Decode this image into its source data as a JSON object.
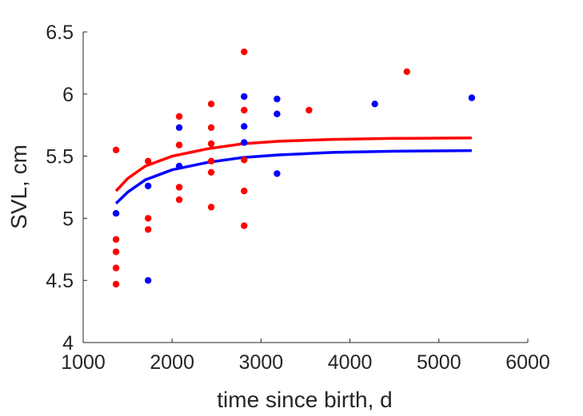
{
  "chart_data": {
    "type": "scatter",
    "xlabel": "time since birth, d",
    "ylabel": "SVL, cm",
    "xlim": [
      1000,
      6000
    ],
    "ylim": [
      4,
      6.5
    ],
    "xticks": [
      1000,
      2000,
      3000,
      4000,
      5000,
      6000
    ],
    "xtick_labels": [
      "1000",
      "2000",
      "3000",
      "4000",
      "5000",
      "6000"
    ],
    "yticks": [
      4,
      4.5,
      5,
      5.5,
      6,
      6.5
    ],
    "ytick_labels": [
      "4",
      "4.5",
      "5",
      "5.5",
      "6",
      "6.5"
    ],
    "grid": false,
    "colors": {
      "red": "#ff0000",
      "blue": "#0000ff",
      "axis": "#262626"
    },
    "series": [
      {
        "color": "#ff0000",
        "points": [
          [
            1370,
            5.55
          ],
          [
            1370,
            4.83
          ],
          [
            1370,
            4.73
          ],
          [
            1370,
            4.6
          ],
          [
            1370,
            4.47
          ],
          [
            1730,
            5.46
          ],
          [
            1730,
            5.0
          ],
          [
            1730,
            4.91
          ],
          [
            2080,
            5.82
          ],
          [
            2080,
            5.59
          ],
          [
            2080,
            5.25
          ],
          [
            2080,
            5.15
          ],
          [
            2440,
            5.92
          ],
          [
            2440,
            5.73
          ],
          [
            2440,
            5.6
          ],
          [
            2440,
            5.46
          ],
          [
            2440,
            5.37
          ],
          [
            2440,
            5.09
          ],
          [
            2810,
            6.34
          ],
          [
            2810,
            5.87
          ],
          [
            2810,
            5.47
          ],
          [
            2810,
            5.22
          ],
          [
            2810,
            4.94
          ],
          [
            3540,
            5.87
          ],
          [
            4640,
            6.18
          ]
        ],
        "fit": [
          [
            1370,
            5.22
          ],
          [
            1500,
            5.32
          ],
          [
            1700,
            5.42
          ],
          [
            2000,
            5.5
          ],
          [
            2400,
            5.56
          ],
          [
            2800,
            5.6
          ],
          [
            3200,
            5.62
          ],
          [
            3800,
            5.635
          ],
          [
            4500,
            5.643
          ],
          [
            5370,
            5.647
          ]
        ]
      },
      {
        "color": "#0000ff",
        "points": [
          [
            1370,
            5.04
          ],
          [
            1730,
            5.26
          ],
          [
            1730,
            4.5
          ],
          [
            2080,
            5.73
          ],
          [
            2080,
            5.42
          ],
          [
            2810,
            5.98
          ],
          [
            2810,
            5.74
          ],
          [
            2810,
            5.61
          ],
          [
            3180,
            5.96
          ],
          [
            3180,
            5.84
          ],
          [
            3180,
            5.36
          ],
          [
            4280,
            5.92
          ],
          [
            5370,
            5.97
          ]
        ],
        "fit": [
          [
            1370,
            5.12
          ],
          [
            1500,
            5.21
          ],
          [
            1700,
            5.31
          ],
          [
            2000,
            5.39
          ],
          [
            2400,
            5.45
          ],
          [
            2800,
            5.49
          ],
          [
            3200,
            5.51
          ],
          [
            3800,
            5.53
          ],
          [
            4500,
            5.54
          ],
          [
            5370,
            5.545
          ]
        ]
      }
    ]
  }
}
